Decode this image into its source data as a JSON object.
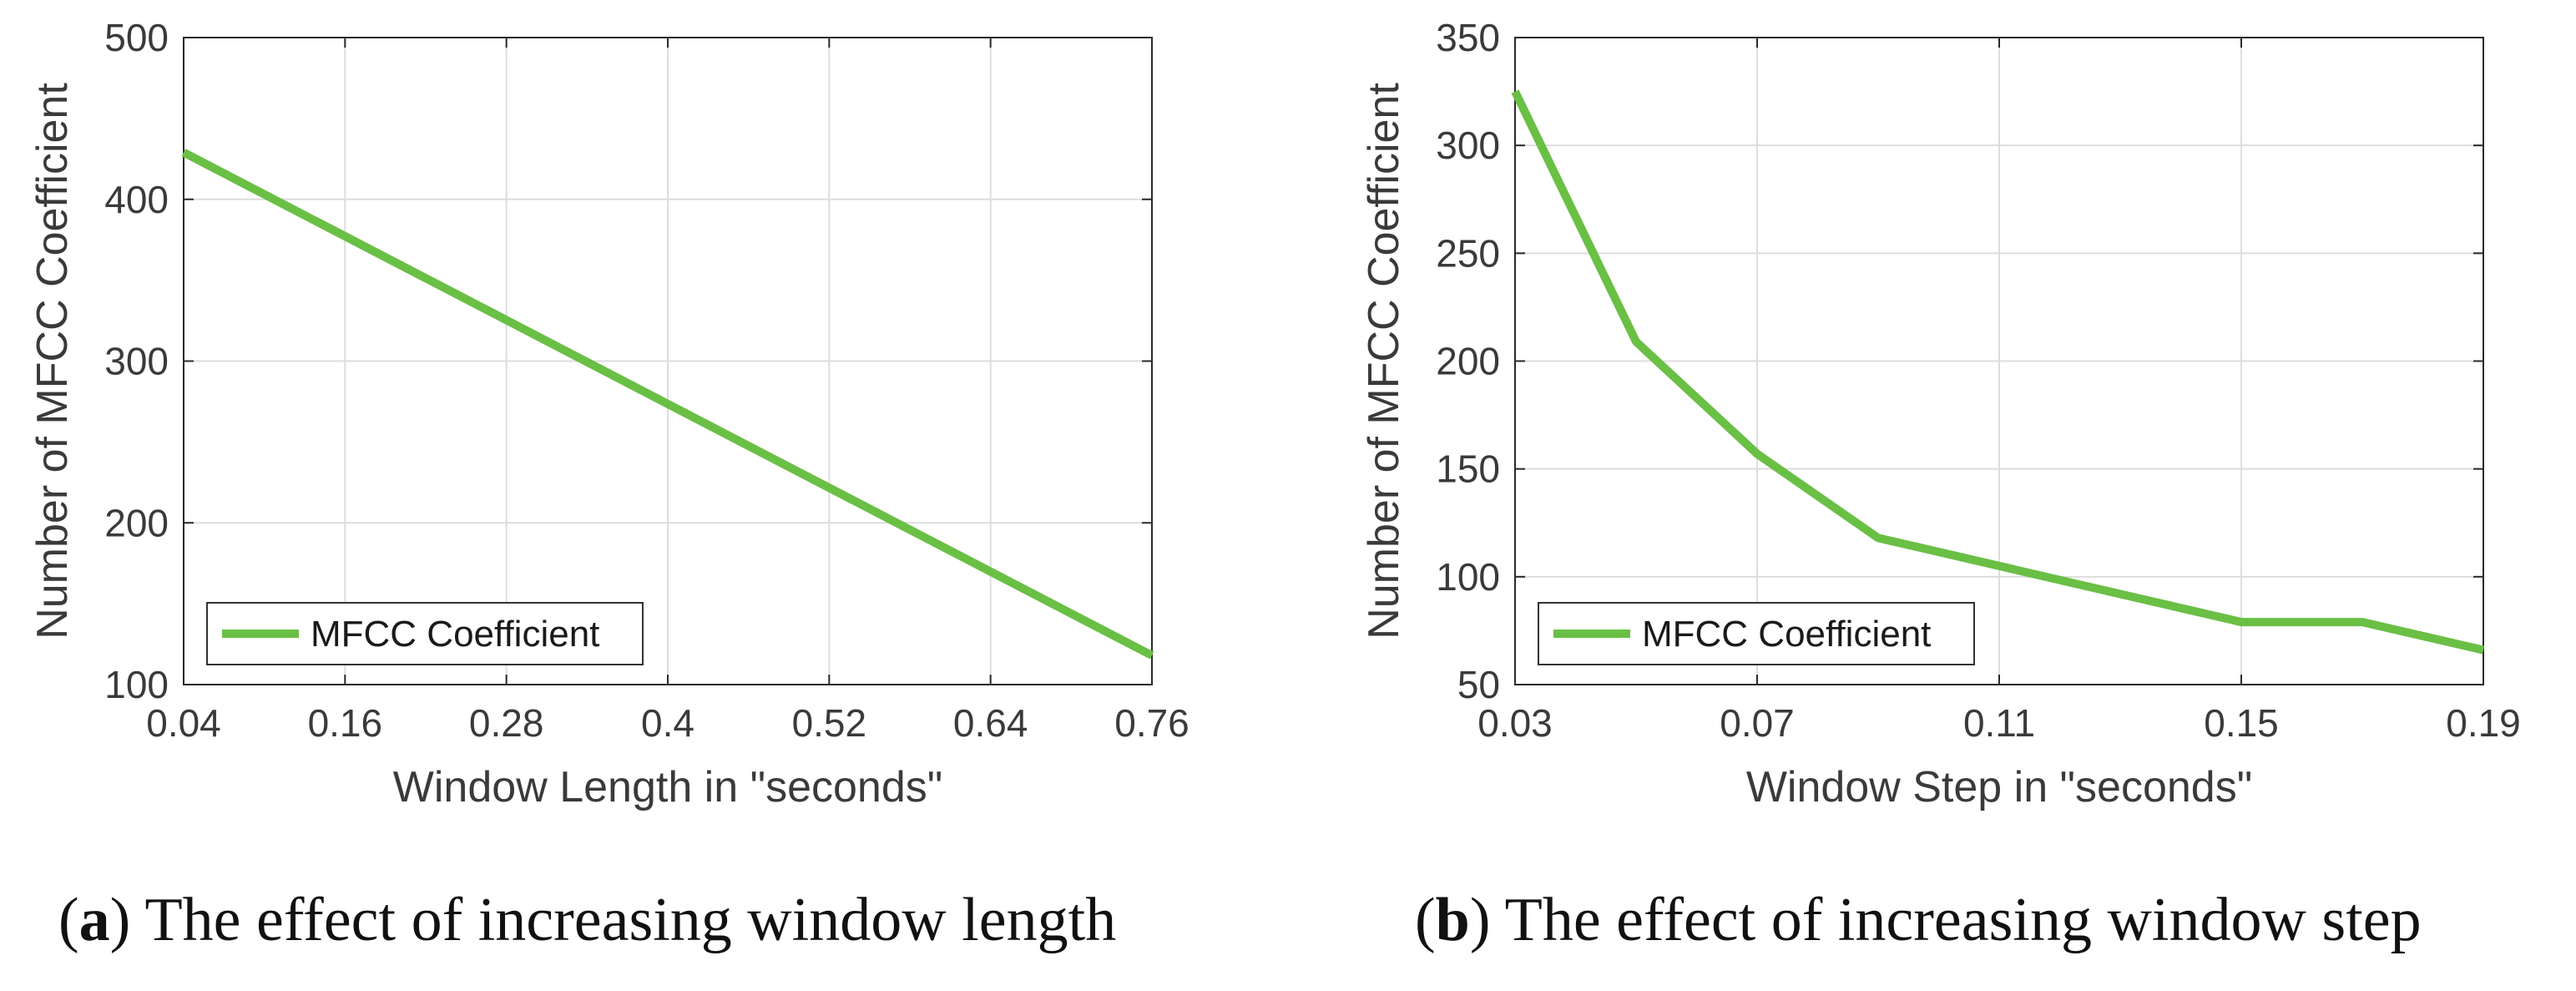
{
  "colors": {
    "series": "#6abf45",
    "grid": "#dddddd",
    "axis": "#2a2a2a",
    "text": "#3a3a3a"
  },
  "chart_data": [
    {
      "type": "line",
      "id": "a",
      "title": "",
      "xlabel": "Window Length in \"seconds\"",
      "ylabel": "Number of MFCC Coefficient",
      "xlim": [
        0.04,
        0.76
      ],
      "ylim": [
        100,
        500
      ],
      "xticks": [
        0.04,
        0.16,
        0.28,
        0.4,
        0.52,
        0.64,
        0.76
      ],
      "xtick_labels": [
        "0.04",
        "0.16",
        "0.28",
        "0.4",
        "0.52",
        "0.64",
        "0.76"
      ],
      "yticks": [
        100,
        200,
        300,
        400,
        500
      ],
      "ytick_labels": [
        "100",
        "200",
        "300",
        "400",
        "500"
      ],
      "grid": true,
      "legend_position": "bottom-left",
      "series": [
        {
          "name": "MFCC Coefficient",
          "x": [
            0.04,
            0.76
          ],
          "y": [
            429,
            118
          ]
        }
      ]
    },
    {
      "type": "line",
      "id": "b",
      "title": "",
      "xlabel": "Window Step in \"seconds\"",
      "ylabel": "Number of MFCC Coefficient",
      "xlim": [
        0.03,
        0.19
      ],
      "ylim": [
        50,
        350
      ],
      "xticks": [
        0.03,
        0.07,
        0.11,
        0.15,
        0.19
      ],
      "xtick_labels": [
        "0.03",
        "0.07",
        "0.11",
        "0.15",
        "0.19"
      ],
      "yticks": [
        50,
        100,
        150,
        200,
        250,
        300,
        350
      ],
      "ytick_labels": [
        "50",
        "100",
        "150",
        "200",
        "250",
        "300",
        "350"
      ],
      "grid": true,
      "legend_position": "bottom-left",
      "series": [
        {
          "name": "MFCC Coefficient",
          "x": [
            0.03,
            0.05,
            0.07,
            0.09,
            0.11,
            0.13,
            0.15,
            0.17,
            0.19
          ],
          "y": [
            325,
            209,
            157,
            118,
            105,
            92,
            79,
            79,
            66
          ]
        }
      ]
    }
  ],
  "captions": [
    {
      "label": "a",
      "text": " The effect of increasing window length"
    },
    {
      "label": "b",
      "text": " The effect of increasing window step"
    }
  ]
}
